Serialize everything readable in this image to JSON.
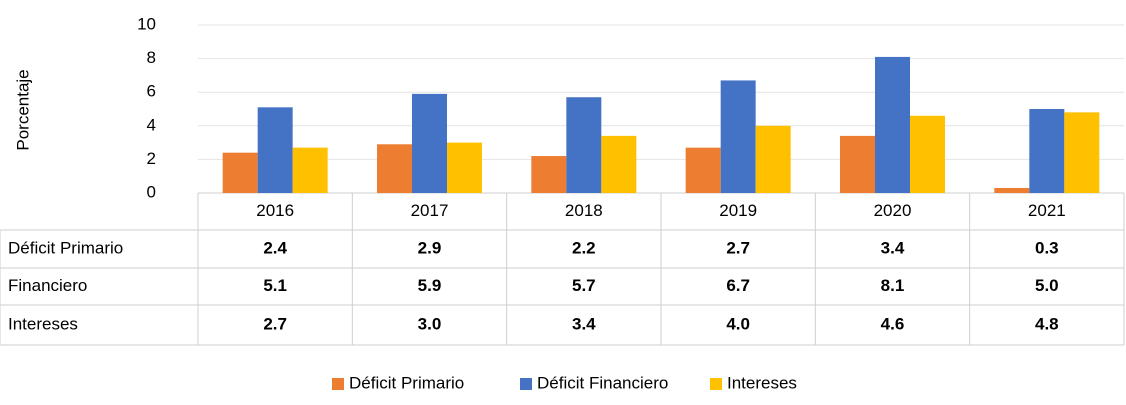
{
  "chart_data": {
    "type": "bar",
    "y_label": "Porcentaje",
    "categories": [
      "2016",
      "2017",
      "2018",
      "2019",
      "2020",
      "2021"
    ],
    "series": [
      {
        "name": "Déficit Primario",
        "color": "#ed7d31",
        "values": [
          2.4,
          2.9,
          2.2,
          2.7,
          3.4,
          0.3
        ],
        "value_labels": [
          "2.4",
          "2.9",
          "2.2",
          "2.7",
          "3.4",
          "0.3"
        ]
      },
      {
        "name": "Déficit Financiero",
        "color": "#4472c4",
        "values": [
          5.1,
          5.9,
          5.7,
          6.7,
          8.1,
          5.0
        ],
        "value_labels": [
          "5.1",
          "5.9",
          "5.7",
          "6.7",
          "8.1",
          "5.0"
        ]
      },
      {
        "name": "Intereses",
        "color": "#ffc000",
        "values": [
          2.7,
          3.0,
          3.4,
          4.0,
          4.6,
          4.8
        ],
        "value_labels": [
          "2.7",
          "3.0",
          "3.4",
          "4.0",
          "4.6",
          "4.8"
        ]
      }
    ],
    "table_row_labels": [
      "Déficit Primario",
      "Financiero",
      "Intereses"
    ],
    "ylim": [
      0,
      10
    ],
    "yticks": [
      0,
      2,
      4,
      6,
      8,
      10
    ],
    "grid": true,
    "legend": "bottom"
  }
}
